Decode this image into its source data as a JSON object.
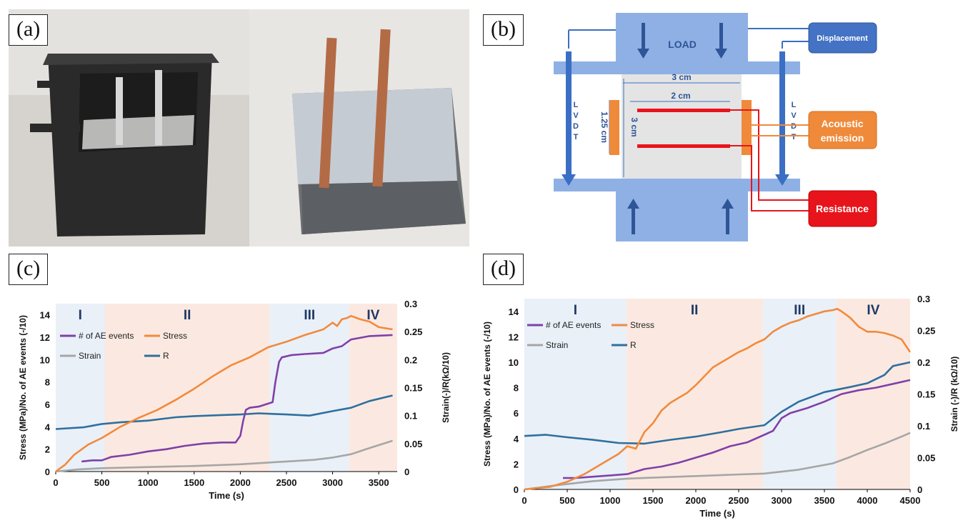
{
  "panels": {
    "a": "(a)",
    "b": "(b)",
    "c": "(c)",
    "d": "(d)"
  },
  "diagram": {
    "load": "LOAD",
    "displacement": "Displacement",
    "acoustic_line1": "Acoustic",
    "acoustic_line2": "emission",
    "resistance": "Resistance",
    "lvdt": [
      "L",
      "V",
      "D",
      "T"
    ],
    "dim_3cm_width": "3 cm",
    "dim_2cm": "2 cm",
    "dim_3cm_height": "3 cm",
    "dim_125cm": "1.25 cm",
    "colors": {
      "steel": "#6f97d4",
      "bar": "#8cafe3",
      "orange": "#ef8a3a",
      "red": "#e8141b",
      "dark": "#2e5597"
    }
  },
  "photo": {
    "description_none": ""
  },
  "chart_data": [
    {
      "type": "line",
      "panel": "c",
      "xlabel": "Time (s)",
      "ylabel_left": "Stress (MPa)/No. of AE events (-/10)",
      "ylabel_right": "Strain(-)/R(kΩ/10)",
      "xlim": [
        0,
        3700
      ],
      "ylim_left": [
        0,
        15
      ],
      "ylim_right": [
        0,
        0.3
      ],
      "x_ticks": [
        "0",
        "500",
        "1000",
        "1500",
        "2000",
        "2500",
        "3000",
        "3500"
      ],
      "y_ticks_left": [
        "0",
        "2",
        "4",
        "6",
        "8",
        "10",
        "12",
        "14"
      ],
      "y_ticks_right": [
        "0",
        "0.05",
        "0.1",
        "0.15",
        "0.2",
        "0.25",
        "0.3"
      ],
      "stages": [
        {
          "label": "I",
          "from": 0,
          "to": 530,
          "color": "#e9f0f8"
        },
        {
          "label": "II",
          "from": 530,
          "to": 2320,
          "color": "#fbe9e1"
        },
        {
          "label": "III",
          "from": 2320,
          "to": 3180,
          "color": "#e9f0f8"
        },
        {
          "label": "IV",
          "from": 3180,
          "to": 3700,
          "color": "#fbe9e1"
        }
      ],
      "legend": [
        "# of AE events",
        "Stress",
        "Strain",
        "R"
      ],
      "series": [
        {
          "name": "# of AE events",
          "axis": "left",
          "color": "#8040a8",
          "x": [
            280,
            400,
            500,
            600,
            800,
            1000,
            1200,
            1400,
            1600,
            1800,
            1950,
            2000,
            2030,
            2060,
            2100,
            2200,
            2350,
            2380,
            2420,
            2450,
            2550,
            2700,
            2900,
            3000,
            3100,
            3200,
            3400,
            3650
          ],
          "y": [
            0.9,
            1.0,
            1.0,
            1.3,
            1.5,
            1.8,
            2.0,
            2.3,
            2.5,
            2.6,
            2.6,
            3.2,
            4.5,
            5.5,
            5.7,
            5.8,
            6.2,
            8.0,
            9.8,
            10.2,
            10.4,
            10.5,
            10.6,
            11.0,
            11.2,
            11.8,
            12.1,
            12.2
          ]
        },
        {
          "name": "Stress",
          "axis": "left",
          "color": "#f28a3c",
          "x": [
            0,
            100,
            200,
            350,
            500,
            700,
            900,
            1100,
            1300,
            1500,
            1700,
            1900,
            2100,
            2300,
            2500,
            2700,
            2900,
            3000,
            3050,
            3100,
            3150,
            3200,
            3300,
            3400,
            3500,
            3650
          ],
          "y": [
            0,
            0.6,
            1.5,
            2.4,
            3.0,
            4.0,
            4.8,
            5.5,
            6.4,
            7.4,
            8.5,
            9.5,
            10.2,
            11.1,
            11.6,
            12.2,
            12.7,
            13.3,
            13.0,
            13.6,
            13.7,
            13.9,
            13.6,
            13.4,
            12.9,
            12.7
          ]
        },
        {
          "name": "Strain",
          "axis": "right",
          "color": "#a6a6a6",
          "x": [
            0,
            250,
            500,
            1000,
            1500,
            2000,
            2500,
            2800,
            3000,
            3200,
            3400,
            3650
          ],
          "y": [
            0.0,
            0.004,
            0.006,
            0.008,
            0.01,
            0.013,
            0.018,
            0.021,
            0.025,
            0.031,
            0.042,
            0.055
          ]
        },
        {
          "name": "R",
          "axis": "right",
          "color": "#2f6f9e",
          "x": [
            0,
            300,
            500,
            700,
            1000,
            1300,
            1500,
            1800,
            2000,
            2200,
            2500,
            2750,
            3000,
            3200,
            3400,
            3650
          ],
          "y": [
            0.076,
            0.079,
            0.085,
            0.088,
            0.091,
            0.097,
            0.099,
            0.101,
            0.102,
            0.104,
            0.102,
            0.1,
            0.108,
            0.114,
            0.126,
            0.136
          ]
        }
      ]
    },
    {
      "type": "line",
      "panel": "d",
      "xlabel": "Time (s)",
      "ylabel_left": "Stress (MPa)/No. of AE events (-/10)",
      "ylabel_right": "Strain (-)/R (kΩ/10)",
      "xlim": [
        0,
        4500
      ],
      "ylim_left": [
        0,
        15
      ],
      "ylim_right": [
        0,
        0.3
      ],
      "x_ticks": [
        "0",
        "500",
        "1000",
        "1500",
        "2000",
        "2500",
        "3000",
        "3500",
        "4000",
        "4500"
      ],
      "y_ticks_left": [
        "0",
        "2",
        "4",
        "6",
        "8",
        "10",
        "12",
        "14"
      ],
      "y_ticks_right": [
        "0",
        "0.05",
        "0.1",
        "0.15",
        "0.2",
        "0.25",
        "0.3"
      ],
      "stages": [
        {
          "label": "I",
          "from": 0,
          "to": 1190,
          "color": "#e9f0f8"
        },
        {
          "label": "II",
          "from": 1190,
          "to": 2780,
          "color": "#fbe9e1"
        },
        {
          "label": "III",
          "from": 2780,
          "to": 3640,
          "color": "#e9f0f8"
        },
        {
          "label": "IV",
          "from": 3640,
          "to": 4500,
          "color": "#fbe9e1"
        }
      ],
      "legend": [
        "# of AE events",
        "Stress",
        "Strain",
        "R"
      ],
      "series": [
        {
          "name": "# of AE events",
          "axis": "left",
          "color": "#8040a8",
          "x": [
            450,
            600,
            800,
            1000,
            1200,
            1400,
            1600,
            1800,
            2000,
            2200,
            2400,
            2600,
            2800,
            2900,
            3000,
            3100,
            3300,
            3500,
            3700,
            3900,
            4100,
            4300,
            4500
          ],
          "y": [
            0.9,
            0.9,
            1.0,
            1.1,
            1.2,
            1.6,
            1.8,
            2.1,
            2.5,
            2.9,
            3.4,
            3.7,
            4.3,
            4.6,
            5.6,
            6.0,
            6.4,
            6.9,
            7.5,
            7.8,
            8.0,
            8.3,
            8.6
          ]
        },
        {
          "name": "Stress",
          "axis": "left",
          "color": "#f28a3c",
          "x": [
            0,
            300,
            500,
            700,
            900,
            1100,
            1200,
            1300,
            1400,
            1500,
            1600,
            1700,
            1800,
            1900,
            2000,
            2100,
            2200,
            2300,
            2400,
            2500,
            2600,
            2700,
            2800,
            2900,
            3000,
            3100,
            3200,
            3300,
            3400,
            3500,
            3600,
            3650,
            3700,
            3800,
            3900,
            4000,
            4100,
            4200,
            4300,
            4400,
            4500
          ],
          "y": [
            0,
            0.2,
            0.6,
            1.2,
            2.0,
            2.8,
            3.4,
            3.2,
            4.5,
            5.2,
            6.2,
            6.8,
            7.2,
            7.6,
            8.2,
            8.9,
            9.6,
            10.0,
            10.4,
            10.8,
            11.1,
            11.5,
            11.8,
            12.4,
            12.8,
            13.1,
            13.3,
            13.6,
            13.8,
            14.0,
            14.1,
            14.2,
            14.0,
            13.5,
            12.8,
            12.4,
            12.4,
            12.3,
            12.1,
            11.8,
            10.8
          ]
        },
        {
          "name": "Strain",
          "axis": "right",
          "color": "#a6a6a6",
          "x": [
            0,
            400,
            800,
            1200,
            1600,
            2000,
            2400,
            2800,
            3200,
            3600,
            3800,
            4000,
            4200,
            4400,
            4500
          ],
          "y": [
            0.0,
            0.007,
            0.013,
            0.017,
            0.019,
            0.021,
            0.023,
            0.025,
            0.031,
            0.041,
            0.051,
            0.062,
            0.072,
            0.083,
            0.089
          ]
        },
        {
          "name": "R",
          "axis": "right",
          "color": "#2f6f9e",
          "x": [
            0,
            250,
            500,
            800,
            1100,
            1400,
            1700,
            2000,
            2300,
            2500,
            2800,
            3000,
            3200,
            3500,
            3800,
            4000,
            4200,
            4300,
            4500
          ],
          "y": [
            0.084,
            0.086,
            0.082,
            0.078,
            0.073,
            0.072,
            0.078,
            0.083,
            0.09,
            0.095,
            0.101,
            0.122,
            0.138,
            0.153,
            0.161,
            0.167,
            0.18,
            0.194,
            0.2
          ]
        }
      ]
    }
  ]
}
